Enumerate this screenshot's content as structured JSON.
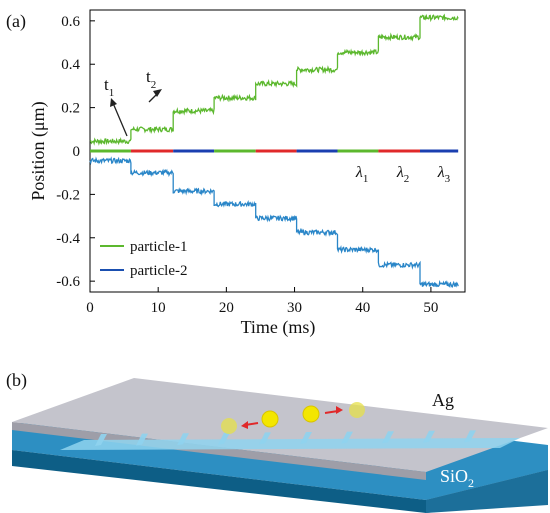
{
  "panel_a_label": "(a)",
  "panel_b_label": "(b)",
  "annotations": {
    "t1": "t",
    "t1_sub": "1",
    "t2": "t",
    "t2_sub": "2"
  },
  "lambda_labels": [
    {
      "base": "λ",
      "sub": "1",
      "x": 39
    },
    {
      "base": "λ",
      "sub": "2",
      "x": 45
    },
    {
      "base": "λ",
      "sub": "3",
      "x": 51
    }
  ],
  "legend": [
    {
      "label": "particle-1",
      "color": "#5cb82e"
    },
    {
      "label": "particle-2",
      "color": "#1a4fb0"
    }
  ],
  "diagram_b": {
    "metal_label": "Ag",
    "substrate_label": "SiO",
    "substrate_sub": "2"
  },
  "chart_data": {
    "type": "line",
    "title": "",
    "xlabel": "Time (ms)",
    "ylabel": "Position (μm)",
    "xlim": [
      0,
      55
    ],
    "ylim": [
      -0.65,
      0.65
    ],
    "xticks": [
      0,
      10,
      20,
      30,
      40,
      50
    ],
    "yticks": [
      -0.6,
      -0.4,
      -0.2,
      0,
      0.2,
      0.4,
      0.6
    ],
    "ytick_labels": [
      "-0.6",
      "-0.4",
      "-0.2",
      "0",
      "0.2",
      "0.4",
      "0.6"
    ],
    "grid": false,
    "legend_position": "bottom-left",
    "series": [
      {
        "name": "particle-1",
        "color": "#5cb82e",
        "step_times": [
          0,
          6,
          12.2,
          18.2,
          24.3,
          30.3,
          36.3,
          42.3,
          48.4,
          54
        ],
        "levels": [
          0.045,
          0.1,
          0.185,
          0.245,
          0.31,
          0.375,
          0.455,
          0.525,
          0.615
        ]
      },
      {
        "name": "particle-2",
        "color": "#2a86c8",
        "step_times": [
          0,
          6,
          12.2,
          18.2,
          24.3,
          30.3,
          36.3,
          42.3,
          48.4,
          54
        ],
        "levels": [
          -0.045,
          -0.1,
          -0.185,
          -0.245,
          -0.31,
          -0.375,
          -0.455,
          -0.525,
          -0.615
        ]
      }
    ],
    "wavelength_bar": {
      "segment_times": [
        0,
        6,
        12.2,
        18.2,
        24.3,
        30.3,
        36.3,
        42.3,
        48.4,
        54
      ],
      "colors": [
        "#5cb82e",
        "#e0292a",
        "#1a3fb0",
        "#5cb82e",
        "#e0292a",
        "#1a3fb0",
        "#5cb82e",
        "#e0292a",
        "#1a3fb0"
      ]
    }
  }
}
